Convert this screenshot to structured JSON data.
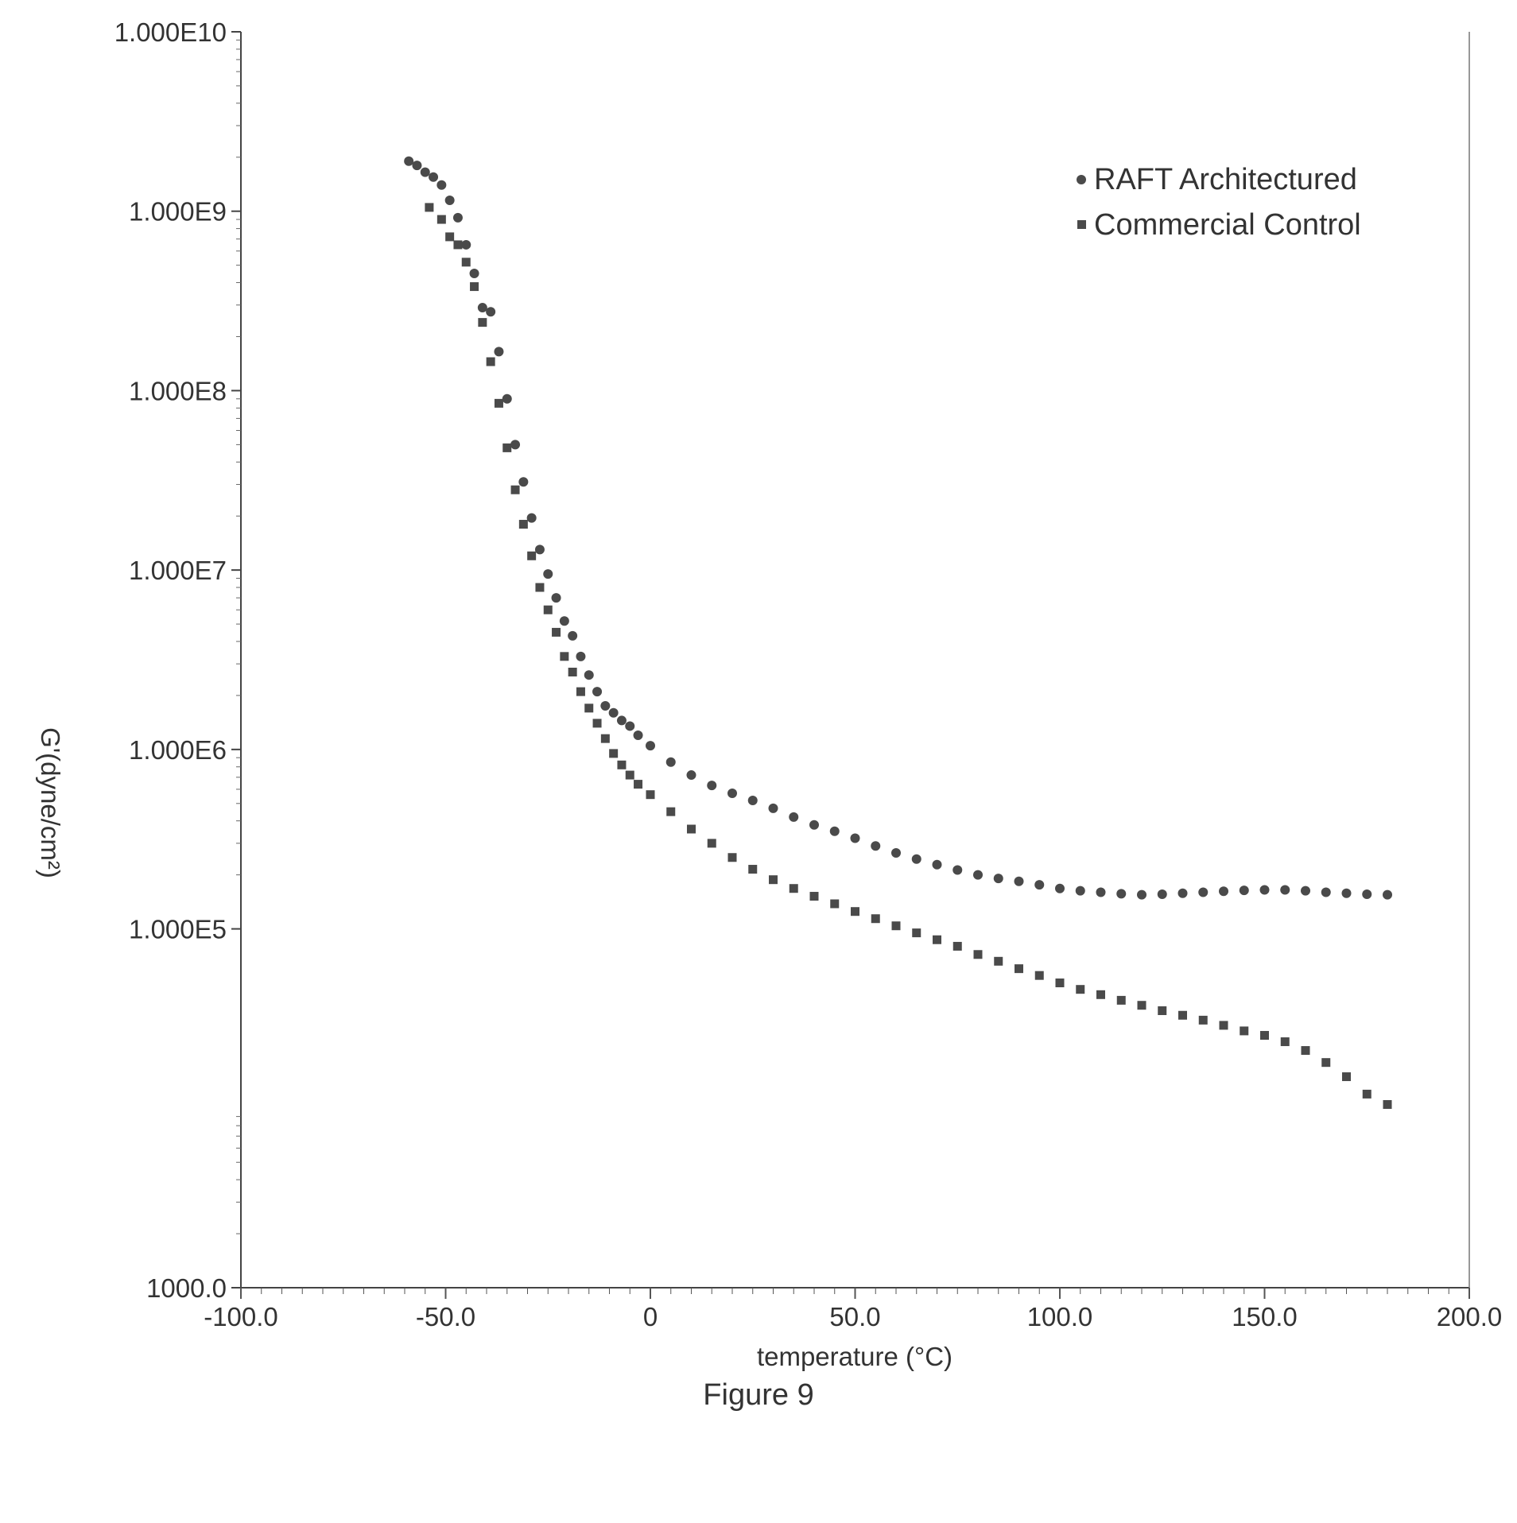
{
  "figure_caption": "Figure 9",
  "chart_data": {
    "type": "scatter",
    "title": "",
    "xlabel": "temperature (°C)",
    "ylabel": "G'(dyne/cm²)",
    "xlim": [
      -100,
      200
    ],
    "ylim": [
      1000,
      10000000000
    ],
    "y_scale": "log",
    "grid": false,
    "legend_position": "top-right",
    "x_ticks": [
      {
        "value": -100,
        "label": "-100.0"
      },
      {
        "value": -50,
        "label": "-50.0"
      },
      {
        "value": 0,
        "label": "0"
      },
      {
        "value": 50,
        "label": "50.0"
      },
      {
        "value": 100,
        "label": "100.0"
      },
      {
        "value": 150,
        "label": "150.0"
      },
      {
        "value": 200,
        "label": "200.0"
      }
    ],
    "y_ticks": [
      {
        "value": 1000,
        "label": "1000.0"
      },
      {
        "value": 100000,
        "label": "1.000E5"
      },
      {
        "value": 1000000,
        "label": "1.000E6"
      },
      {
        "value": 10000000,
        "label": "1.000E7"
      },
      {
        "value": 100000000,
        "label": "1.000E8"
      },
      {
        "value": 1000000000,
        "label": "1.000E9"
      },
      {
        "value": 10000000000,
        "label": "1.000E10"
      }
    ],
    "series": [
      {
        "name": "RAFT Architectured",
        "marker": "circle",
        "color": "#4a4a4a",
        "x": [
          -59,
          -57,
          -55,
          -53,
          -51,
          -49,
          -47,
          -45,
          -43,
          -41,
          -39,
          -37,
          -35,
          -33,
          -31,
          -29,
          -27,
          -25,
          -23,
          -21,
          -19,
          -17,
          -15,
          -13,
          -11,
          -9,
          -7,
          -5,
          -3,
          0,
          5,
          10,
          15,
          20,
          25,
          30,
          35,
          40,
          45,
          50,
          55,
          60,
          65,
          70,
          75,
          80,
          85,
          90,
          95,
          100,
          105,
          110,
          115,
          120,
          125,
          130,
          135,
          140,
          145,
          150,
          155,
          160,
          165,
          170,
          175,
          180
        ],
        "y": [
          1900000000,
          1800000000,
          1650000000,
          1550000000,
          1400000000,
          1150000000,
          920000000,
          650000000,
          450000000,
          290000000,
          275000000,
          165000000,
          90000000,
          50000000,
          31000000,
          19500000,
          13000000,
          9500000,
          7000000,
          5200000,
          4300000,
          3300000,
          2600000,
          2100000,
          1750000,
          1600000,
          1450000,
          1350000,
          1200000,
          1050000,
          850000,
          720000,
          630000,
          570000,
          520000,
          470000,
          420000,
          380000,
          350000,
          320000,
          290000,
          265000,
          245000,
          228000,
          213000,
          200000,
          191000,
          184000,
          176000,
          168000,
          163000,
          160000,
          157000,
          155000,
          156000,
          158000,
          160000,
          162000,
          164000,
          165000,
          165000,
          163000,
          160000,
          158000,
          156000,
          155000
        ]
      },
      {
        "name": "Commercial Control",
        "marker": "square",
        "color": "#4a4a4a",
        "x": [
          -54,
          -51,
          -49,
          -47,
          -45,
          -43,
          -41,
          -39,
          -37,
          -35,
          -33,
          -31,
          -29,
          -27,
          -25,
          -23,
          -21,
          -19,
          -17,
          -15,
          -13,
          -11,
          -9,
          -7,
          -5,
          -3,
          0,
          5,
          10,
          15,
          20,
          25,
          30,
          35,
          40,
          45,
          50,
          55,
          60,
          65,
          70,
          75,
          80,
          85,
          90,
          95,
          100,
          105,
          110,
          115,
          120,
          125,
          130,
          135,
          140,
          145,
          150,
          155,
          160,
          165,
          170,
          175,
          180
        ],
        "y": [
          1050000000,
          900000000,
          720000000,
          650000000,
          520000000,
          380000000,
          240000000,
          145000000,
          85000000,
          48000000,
          28000000,
          18000000,
          12000000,
          8000000,
          6000000,
          4500000,
          3300000,
          2700000,
          2100000,
          1700000,
          1400000,
          1150000,
          950000,
          820000,
          720000,
          640000,
          560000,
          450000,
          360000,
          300000,
          250000,
          215000,
          188000,
          168000,
          152000,
          138000,
          125000,
          114000,
          104000,
          95000,
          87000,
          80000,
          72000,
          66000,
          60000,
          55000,
          50000,
          46000,
          43000,
          40000,
          37500,
          35000,
          33000,
          31000,
          29000,
          27000,
          25500,
          23500,
          21000,
          18000,
          15000,
          12000,
          10500
        ]
      }
    ]
  }
}
